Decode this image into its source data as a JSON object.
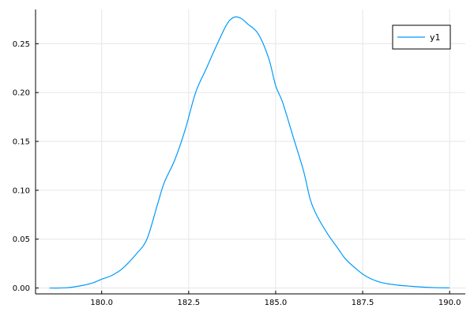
{
  "chart_data": {
    "type": "line",
    "title": "",
    "xlabel": "",
    "ylabel": "",
    "xlim": [
      178.1,
      190.45
    ],
    "ylim": [
      -0.006,
      0.285
    ],
    "grid": true,
    "legend_position": "top-right",
    "xticks": [
      180.0,
      182.5,
      185.0,
      187.5,
      190.0
    ],
    "xtick_labels": [
      "180.0",
      "182.5",
      "185.0",
      "187.5",
      "190.0"
    ],
    "yticks": [
      0.0,
      0.05,
      0.1,
      0.15,
      0.2,
      0.25
    ],
    "ytick_labels": [
      "0.00",
      "0.05",
      "0.10",
      "0.15",
      "0.20",
      "0.25"
    ],
    "series": [
      {
        "name": "y1",
        "color": "#009AF9",
        "x": [
          178.5,
          179.0,
          179.5,
          179.8,
          180.0,
          180.3,
          180.6,
          181.0,
          181.3,
          181.6,
          181.8,
          182.1,
          182.4,
          182.7,
          183.0,
          183.3,
          183.6,
          183.8,
          184.0,
          184.2,
          184.5,
          184.8,
          185.0,
          185.2,
          185.5,
          185.8,
          186.0,
          186.2,
          186.5,
          186.8,
          187.0,
          187.3,
          187.6,
          188.0,
          188.5,
          189.0,
          189.5,
          190.0
        ],
        "y": [
          0.0,
          0.0003,
          0.003,
          0.006,
          0.009,
          0.013,
          0.02,
          0.035,
          0.05,
          0.085,
          0.108,
          0.131,
          0.162,
          0.2,
          0.224,
          0.248,
          0.27,
          0.277,
          0.276,
          0.27,
          0.26,
          0.235,
          0.207,
          0.19,
          0.155,
          0.12,
          0.09,
          0.073,
          0.055,
          0.04,
          0.03,
          0.02,
          0.012,
          0.006,
          0.003,
          0.0015,
          0.0005,
          0.0001
        ]
      }
    ]
  }
}
